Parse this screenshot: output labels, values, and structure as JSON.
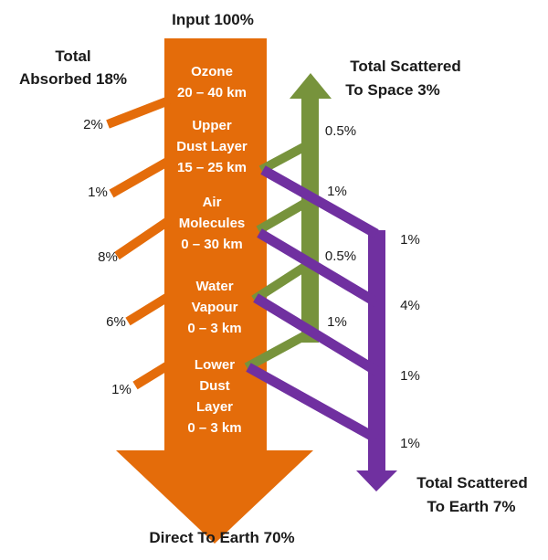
{
  "colors": {
    "absorbed": "#E46C0A",
    "space": "#77933C",
    "earth": "#7030A0",
    "text": "#1a1a1a",
    "layer_text": "#ffffff"
  },
  "input_label": "Input 100%",
  "direct_label": "Direct To Earth 70%",
  "absorbed_title": [
    "Total",
    "Absorbed 18%"
  ],
  "space_title": [
    "Total Scattered",
    "To Space 3%"
  ],
  "earth_title": [
    "Total Scattered",
    "To Earth 7%"
  ],
  "layers": [
    {
      "lines": [
        "Ozone",
        "20 – 40 km"
      ],
      "absorbed": "2%"
    },
    {
      "lines": [
        "Upper",
        "Dust Layer",
        "15 – 25 km"
      ],
      "absorbed": "1%",
      "to_space": "0.5%",
      "to_earth": "1%"
    },
    {
      "lines": [
        "Air",
        "Molecules",
        "0 – 30 km"
      ],
      "absorbed": "8%",
      "to_space": "1%",
      "to_earth": "4%"
    },
    {
      "lines": [
        "Water",
        "Vapour",
        "0 – 3 km"
      ],
      "absorbed": "6%",
      "to_space": "0.5%",
      "to_earth": "1%"
    },
    {
      "lines": [
        "Lower",
        "Dust",
        "Layer",
        "0 – 3 km"
      ],
      "absorbed": "1%",
      "to_space": "1%",
      "to_earth": "1%"
    }
  ]
}
